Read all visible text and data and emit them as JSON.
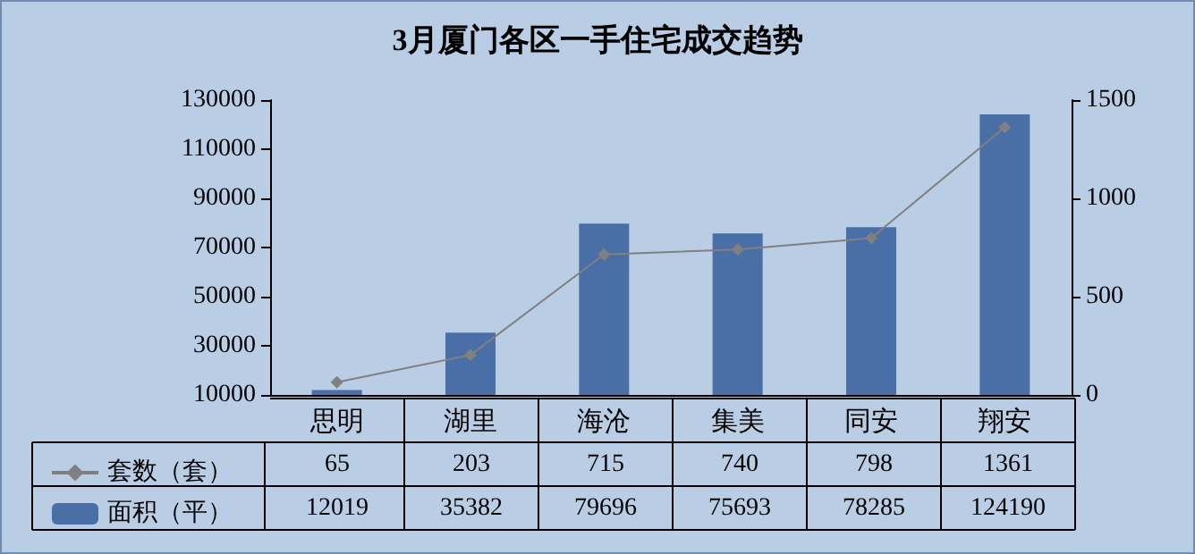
{
  "chart_data": {
    "type": "bar",
    "title": "3月厦门各区一手住宅成交趋势",
    "categories": [
      "思明",
      "湖里",
      "海沧",
      "集美",
      "同安",
      "翔安"
    ],
    "series": [
      {
        "name": "套数（套）",
        "type": "line",
        "axis": "y2",
        "color": "#808080",
        "values": [
          65,
          203,
          715,
          740,
          798,
          1361
        ]
      },
      {
        "name": "面积（平）",
        "color": "#4a6fa6",
        "values": [
          12019,
          35382,
          79696,
          75693,
          78285,
          124190
        ]
      }
    ],
    "ylim": [
      10000,
      130000
    ],
    "yticks": [
      10000,
      30000,
      50000,
      70000,
      90000,
      110000,
      130000
    ],
    "y2lim": [
      0,
      1500
    ],
    "y2ticks": [
      0,
      500,
      1000,
      1500
    ],
    "grid": false,
    "legend": "bottom",
    "marker": "diamond",
    "line_style": "solid",
    "data_labels": true
  }
}
